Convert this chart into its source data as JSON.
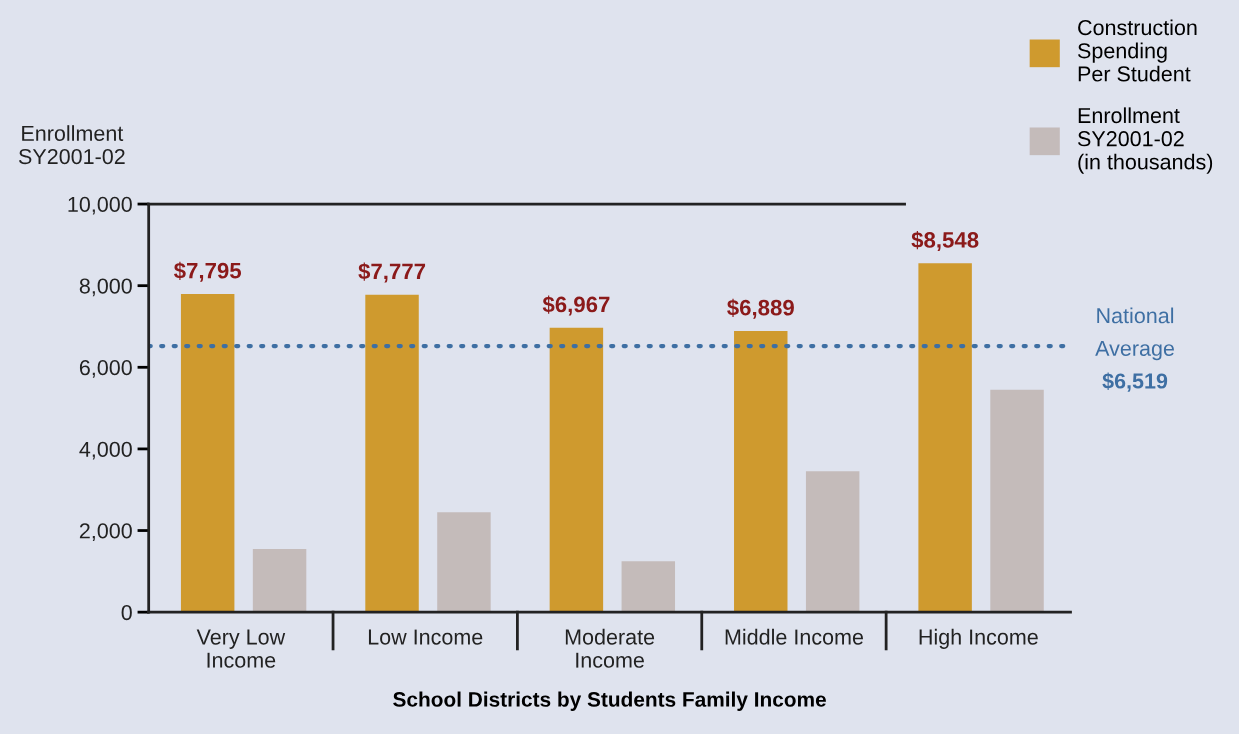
{
  "chart_data": {
    "type": "bar",
    "xlabel": "School Districts by Students Family Income",
    "ylabel": "Enrollment\nSY2001-02",
    "categories": [
      "Very Low\nIncome",
      "Low Income",
      "Moderate\nIncome",
      "Middle Income",
      "High Income"
    ],
    "series": [
      {
        "name": "Construction\nSpending\nPer Student",
        "color": "#cf9a2e",
        "values": [
          7795,
          7777,
          6967,
          6889,
          8548
        ],
        "value_labels": [
          "$7,795",
          "$7,777",
          "$6,967",
          "$6,889",
          "$8,548"
        ]
      },
      {
        "name": "Enrollment\nSY2001-02\n(in thousands)",
        "color": "#c4bbba",
        "values": [
          1550,
          2450,
          1250,
          3450,
          5450
        ]
      }
    ],
    "ylim": [
      0,
      10000
    ],
    "yticks": [
      {
        "value": 0,
        "label": "0"
      },
      {
        "value": 2000,
        "label": "2,000"
      },
      {
        "value": 4000,
        "label": "4,000"
      },
      {
        "value": 6000,
        "label": "6,000"
      },
      {
        "value": 8000,
        "label": "8,000"
      },
      {
        "value": 10000,
        "label": "10,000"
      }
    ],
    "ref_lines": [
      {
        "axis": "y",
        "value": 6519,
        "label": "National\nAverage\n$6,519",
        "color": "#3e6fa3",
        "line_style": "dotted"
      }
    ],
    "grid": false,
    "legend": "top right"
  }
}
